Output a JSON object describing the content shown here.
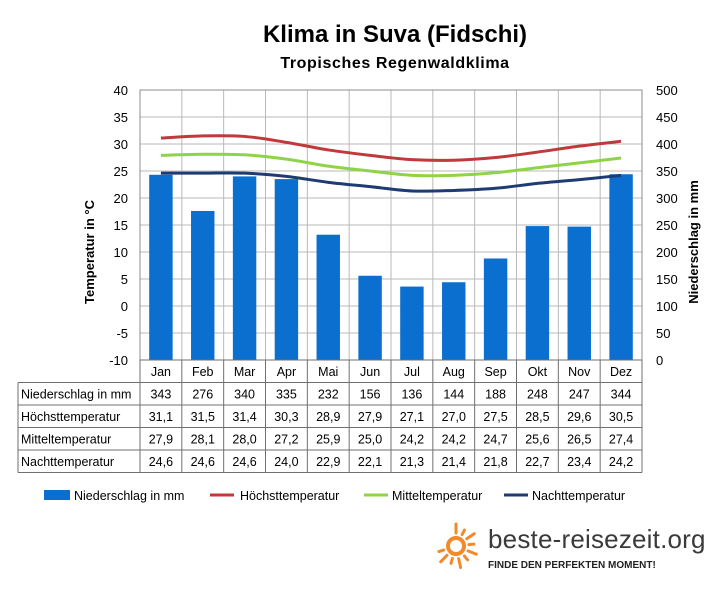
{
  "chart_data": {
    "type": "bar",
    "title": "Klima in Suva (Fidschi)",
    "subtitle": "Tropisches Regenwaldklima",
    "ylabel_left": "Temperatur in °C",
    "ylabel_right": "Niederschlag in mm",
    "ylim_left": [
      -10,
      40
    ],
    "ylim_right": [
      0,
      500
    ],
    "yticks_left": [
      "40",
      "35",
      "30",
      "25",
      "20",
      "15",
      "10",
      "5",
      "0",
      "-5",
      "-10"
    ],
    "yticks_right": [
      "500",
      "450",
      "400",
      "350",
      "300",
      "250",
      "200",
      "150",
      "100",
      "50",
      "0"
    ],
    "grid": true,
    "legend_position": "bottom",
    "categories": [
      "Jan",
      "Feb",
      "Mar",
      "Apr",
      "Mai",
      "Jun",
      "Jul",
      "Aug",
      "Sep",
      "Okt",
      "Nov",
      "Dez"
    ],
    "series": [
      {
        "name": "Niederschlag in mm",
        "type": "bar",
        "axis": "right",
        "color": "#0a6fcf",
        "values": [
          343,
          276,
          340,
          335,
          232,
          156,
          136,
          144,
          188,
          248,
          247,
          344
        ],
        "labels": [
          "343",
          "276",
          "340",
          "335",
          "232",
          "156",
          "136",
          "144",
          "188",
          "248",
          "247",
          "344"
        ]
      },
      {
        "name": "Höchsttemperatur",
        "type": "line",
        "axis": "left",
        "color": "#c0393b",
        "values": [
          31.1,
          31.5,
          31.4,
          30.3,
          28.9,
          27.9,
          27.1,
          27.0,
          27.5,
          28.5,
          29.6,
          30.5
        ],
        "labels": [
          "31,1",
          "31,5",
          "31,4",
          "30,3",
          "28,9",
          "27,9",
          "27,1",
          "27,0",
          "27,5",
          "28,5",
          "29,6",
          "30,5"
        ]
      },
      {
        "name": "Mitteltemperatur",
        "type": "line",
        "axis": "left",
        "color": "#8fd448",
        "values": [
          27.9,
          28.1,
          28.0,
          27.2,
          25.9,
          25.0,
          24.2,
          24.2,
          24.7,
          25.6,
          26.5,
          27.4
        ],
        "labels": [
          "27,9",
          "28,1",
          "28,0",
          "27,2",
          "25,9",
          "25,0",
          "24,2",
          "24,2",
          "24,7",
          "25,6",
          "26,5",
          "27,4"
        ]
      },
      {
        "name": "Nachttemperatur",
        "type": "line",
        "axis": "left",
        "color": "#1f3b73",
        "values": [
          24.6,
          24.6,
          24.6,
          24.0,
          22.9,
          22.1,
          21.3,
          21.4,
          21.8,
          22.7,
          23.4,
          24.2
        ],
        "labels": [
          "24,6",
          "24,6",
          "24,6",
          "24,0",
          "22,9",
          "22,1",
          "21,3",
          "21,4",
          "21,8",
          "22,7",
          "23,4",
          "24,2"
        ]
      }
    ]
  },
  "brand": {
    "name": "beste-reisezeit.org",
    "tagline": "FINDE DEN PERFEKTEN MOMENT!",
    "logo_color": "#f08a2c"
  }
}
